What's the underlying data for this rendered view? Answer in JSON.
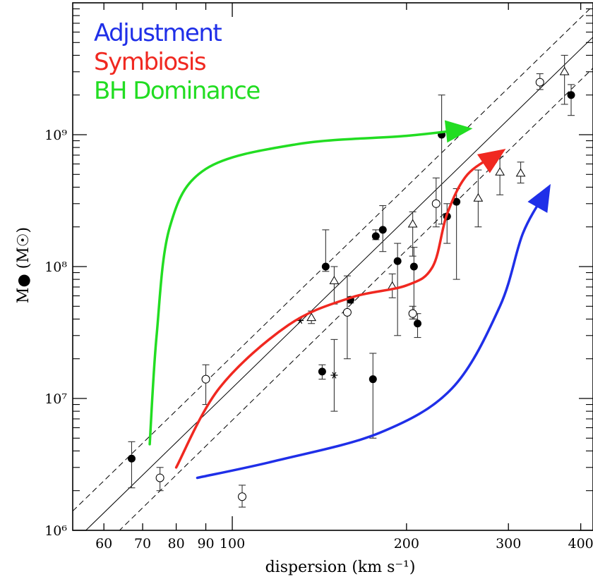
{
  "chart_data": {
    "type": "scatter",
    "xlabel": "dispersion (km s⁻¹)",
    "ylabel": "M● (M☉)",
    "xscale": "log",
    "yscale": "log",
    "xlim": [
      53,
      420
    ],
    "ylim": [
      1000000,
      10000000000
    ],
    "xticks": [
      {
        "value": 60,
        "label": "60"
      },
      {
        "value": 70,
        "label": "70"
      },
      {
        "value": 80,
        "label": "80"
      },
      {
        "value": 90,
        "label": "90"
      },
      {
        "value": 100,
        "label": "100"
      },
      {
        "value": 200,
        "label": "200"
      },
      {
        "value": 300,
        "label": "300"
      },
      {
        "value": 400,
        "label": "400"
      }
    ],
    "yticks": [
      {
        "value": 1000000,
        "label": "10⁶"
      },
      {
        "value": 10000000,
        "label": "10⁷"
      },
      {
        "value": 100000000,
        "label": "10⁸"
      },
      {
        "value": 1000000000,
        "label": "10⁹"
      }
    ],
    "legend_placement": "top-left",
    "legend": [
      {
        "label": "Adjustment",
        "color": "#1f2fe8"
      },
      {
        "label": "Symbiosis",
        "color": "#f02820"
      },
      {
        "label": "BH Dominance",
        "color": "#22dd22"
      }
    ],
    "relations": [
      {
        "kind": "best-fit",
        "style": "solid",
        "points": [
          [
            53,
            800000
          ],
          [
            420,
            5500000000
          ]
        ]
      },
      {
        "kind": "upper-bound",
        "style": "dashed",
        "points": [
          [
            53,
            1400000
          ],
          [
            420,
            9500000000
          ]
        ]
      },
      {
        "kind": "lower-bound",
        "style": "dashed",
        "points": [
          [
            53,
            450000
          ],
          [
            420,
            3200000000
          ]
        ]
      }
    ],
    "series": [
      {
        "marker": "filled-circle",
        "points": [
          {
            "x": 67,
            "y": 3500000,
            "lo": 2100000,
            "hi": 4700000
          },
          {
            "x": 143,
            "y": 16000000,
            "lo": 14000000,
            "hi": 18000000
          },
          {
            "x": 145,
            "y": 100000000,
            "lo": 92000000,
            "hi": 190000000
          },
          {
            "x": 160,
            "y": 56000000,
            "lo": 53000000,
            "hi": 59000000
          },
          {
            "x": 175,
            "y": 14000000,
            "lo": 5000000,
            "hi": 22000000
          },
          {
            "x": 177,
            "y": 170000000,
            "lo": 160000000,
            "hi": 190000000
          },
          {
            "x": 182,
            "y": 190000000,
            "lo": 130000000,
            "hi": 290000000
          },
          {
            "x": 193,
            "y": 110000000,
            "lo": 30000000,
            "hi": 150000000
          },
          {
            "x": 206,
            "y": 100000000,
            "lo": 40000000,
            "hi": 140000000
          },
          {
            "x": 209,
            "y": 37000000,
            "lo": 29000000,
            "hi": 44000000
          },
          {
            "x": 230,
            "y": 1000000000,
            "lo": 210000000,
            "hi": 2000000000
          },
          {
            "x": 235,
            "y": 240000000,
            "lo": 150000000,
            "hi": 300000000
          },
          {
            "x": 244,
            "y": 310000000,
            "lo": 80000000,
            "hi": 390000000
          },
          {
            "x": 385,
            "y": 2000000000,
            "lo": 1400000000,
            "hi": 2400000000
          }
        ]
      },
      {
        "marker": "open-circle",
        "points": [
          {
            "x": 75,
            "y": 2500000,
            "lo": 2000000,
            "hi": 3000000
          },
          {
            "x": 90,
            "y": 14000000,
            "lo": 9000000,
            "hi": 18000000
          },
          {
            "x": 104,
            "y": 1800000,
            "lo": 1500000,
            "hi": 2200000
          },
          {
            "x": 158,
            "y": 45000000,
            "lo": 20000000,
            "hi": 85000000
          },
          {
            "x": 205,
            "y": 44000000,
            "lo": 40000000,
            "hi": 50000000
          },
          {
            "x": 225,
            "y": 300000000,
            "lo": 200000000,
            "hi": 470000000
          },
          {
            "x": 340,
            "y": 2500000000,
            "lo": 2200000000,
            "hi": 2900000000
          }
        ]
      },
      {
        "marker": "open-triangle",
        "points": [
          {
            "x": 137,
            "y": 41000000,
            "lo": 37000000,
            "hi": 46000000
          },
          {
            "x": 150,
            "y": 78000000,
            "lo": 52000000,
            "hi": 100000000
          },
          {
            "x": 189,
            "y": 71000000,
            "lo": 58000000,
            "hi": 88000000
          },
          {
            "x": 205,
            "y": 210000000,
            "lo": 120000000,
            "hi": 260000000
          },
          {
            "x": 266,
            "y": 330000000,
            "lo": 200000000,
            "hi": 540000000
          },
          {
            "x": 290,
            "y": 520000000,
            "lo": 350000000,
            "hi": 680000000
          },
          {
            "x": 315,
            "y": 510000000,
            "lo": 430000000,
            "hi": 620000000
          },
          {
            "x": 375,
            "y": 3000000000,
            "lo": 1700000000,
            "hi": 4000000000
          }
        ]
      },
      {
        "marker": "asterisk",
        "points": [
          {
            "x": 131,
            "y": 39000000,
            "lo": 39000000,
            "hi": 39000000
          },
          {
            "x": 150,
            "y": 15000000,
            "lo": 8000000,
            "hi": 28000000
          }
        ]
      }
    ],
    "curves": [
      {
        "name": "BH Dominance",
        "color": "#22dd22",
        "points": [
          [
            72,
            4500000
          ],
          [
            74,
            30000000
          ],
          [
            78,
            200000000
          ],
          [
            90,
            550000000
          ],
          [
            130,
            850000000
          ],
          [
            200,
            980000000
          ],
          [
            253,
            1100000000
          ]
        ],
        "arrow": true
      },
      {
        "name": "Symbiosis",
        "color": "#f02820",
        "points": [
          [
            80,
            3000000
          ],
          [
            95,
            12000000
          ],
          [
            125,
            36000000
          ],
          [
            160,
            58000000
          ],
          [
            200,
            72000000
          ],
          [
            222,
            100000000
          ],
          [
            235,
            250000000
          ],
          [
            255,
            500000000
          ],
          [
            290,
            730000000
          ]
        ],
        "arrow": true
      },
      {
        "name": "Adjustment",
        "color": "#1f2fe8",
        "points": [
          [
            87,
            2500000
          ],
          [
            120,
            3400000
          ],
          [
            180,
            5500000
          ],
          [
            240,
            12000000
          ],
          [
            290,
            50000000
          ],
          [
            318,
            180000000
          ],
          [
            350,
            380000000
          ]
        ],
        "arrow": true
      }
    ]
  }
}
